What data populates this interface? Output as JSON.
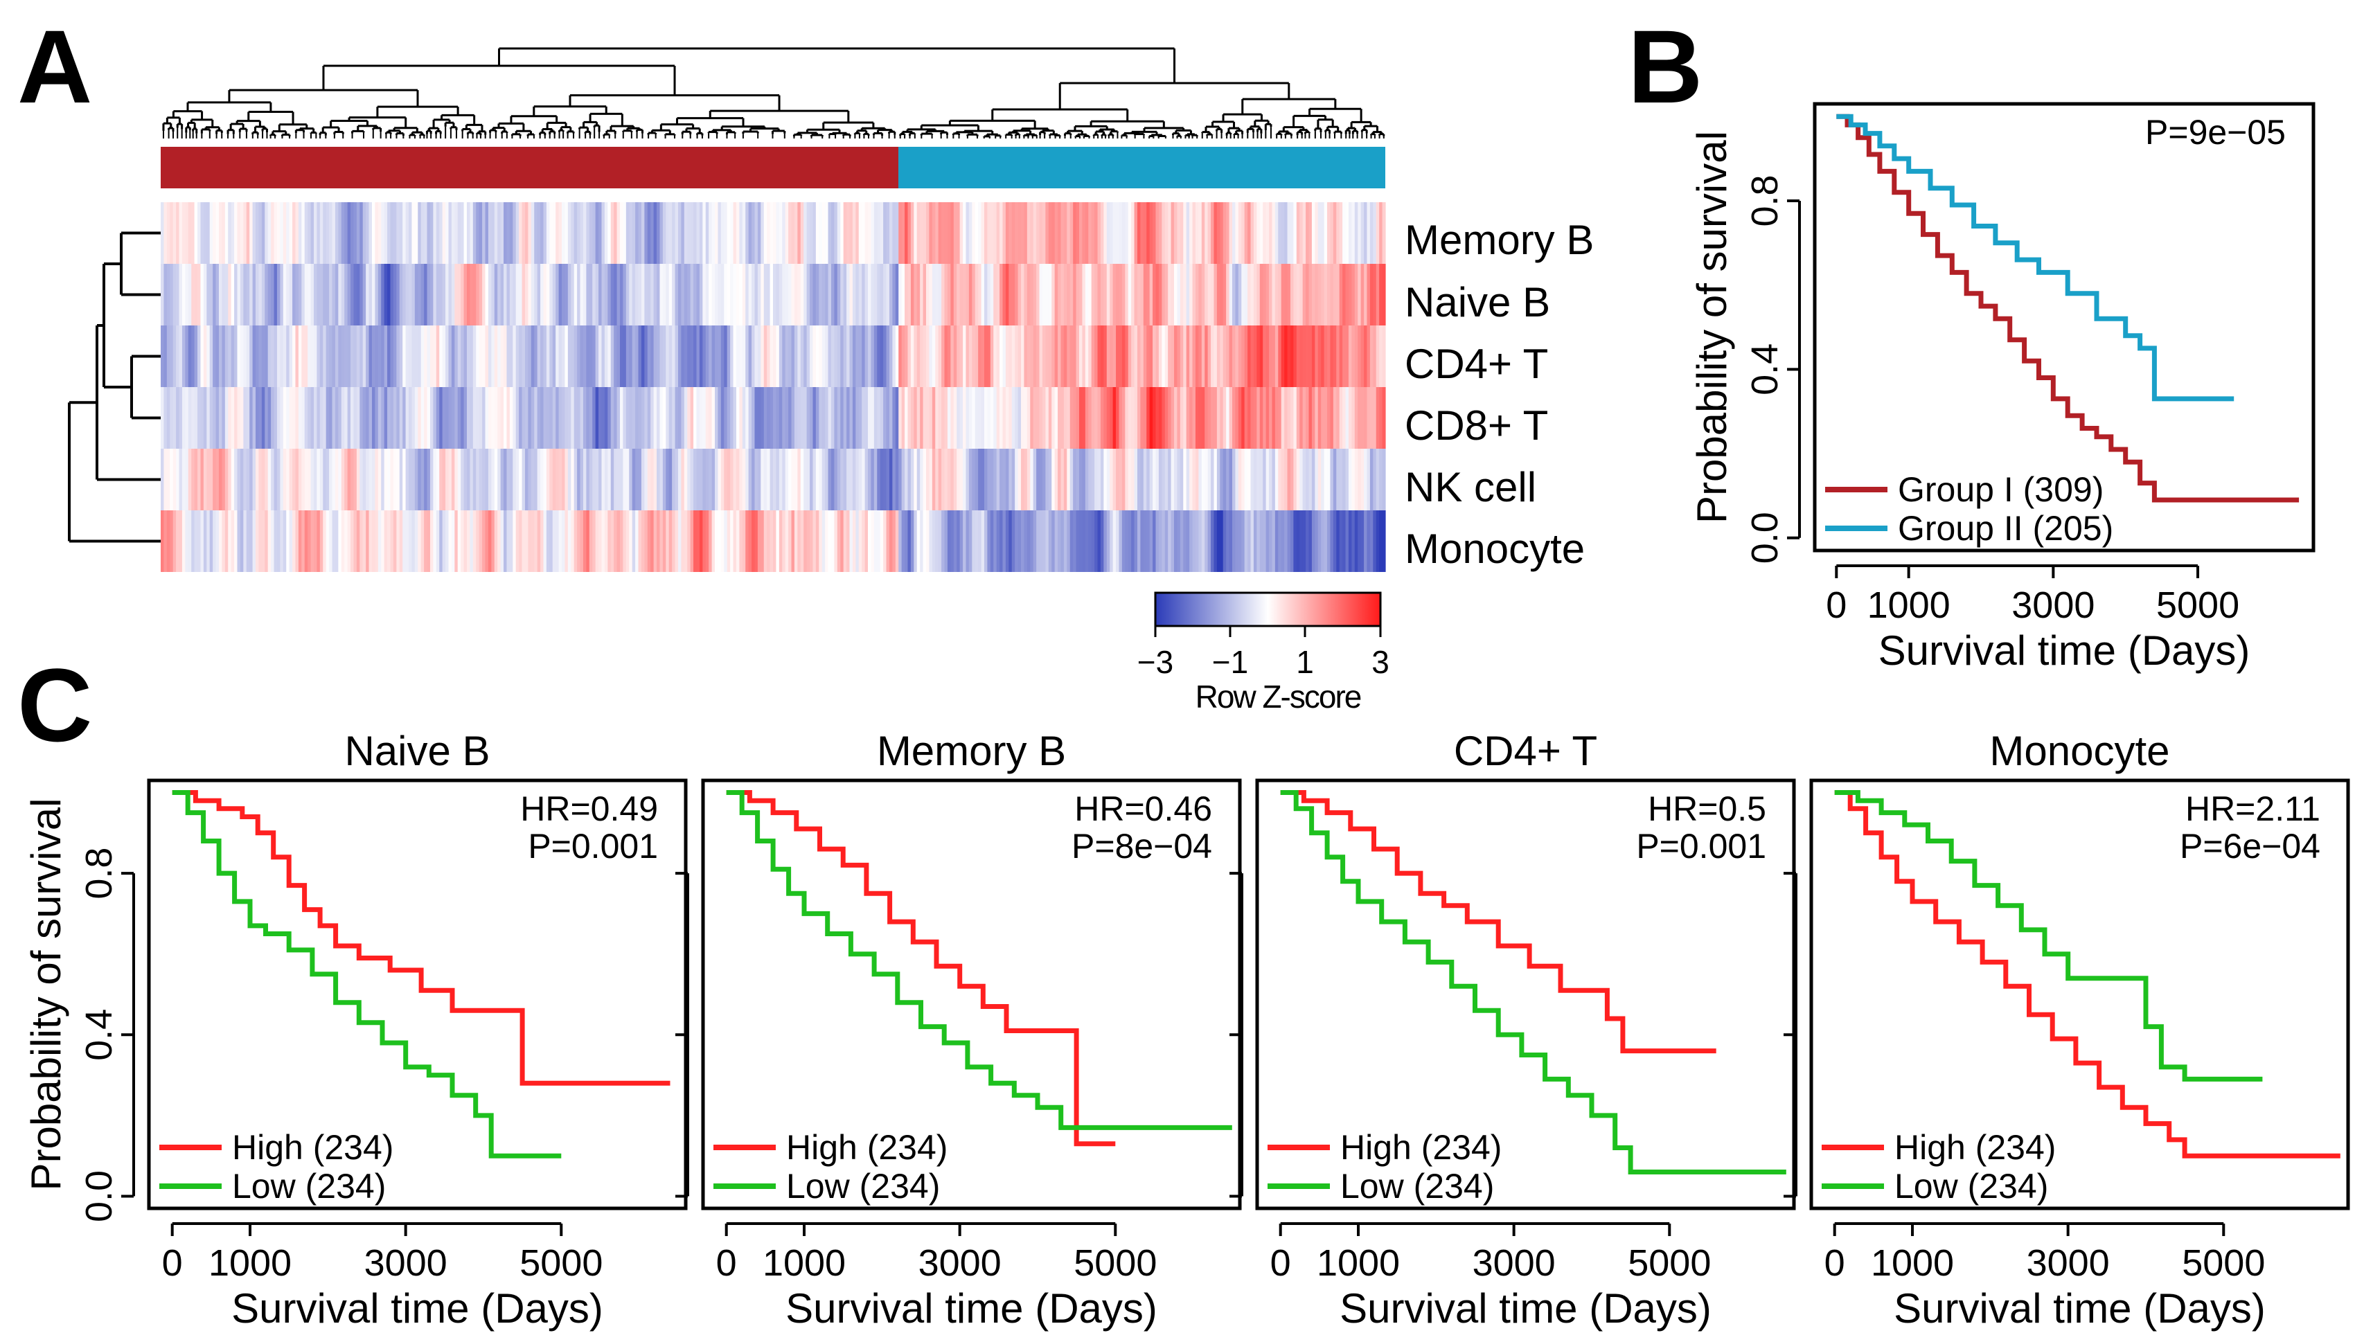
{
  "panels": {
    "A": {
      "letter": "A",
      "row_labels": [
        "Memory B",
        "Naive B",
        "CD4+ T",
        "CD8+ T",
        "NK cell",
        "Monocyte"
      ],
      "colorbar": {
        "title": "Row Z-score",
        "ticks": [
          "−3",
          "−1",
          "1",
          "3"
        ],
        "low_color": "#2b3bb8",
        "mid_color": "#ffffff",
        "high_color": "#ff1a1a"
      },
      "group_bar_colors": {
        "group_I": "#b22026",
        "group_II": "#1aa0c8"
      }
    },
    "B": {
      "letter": "B"
    },
    "C": {
      "letter": "C"
    }
  },
  "chart_data": [
    {
      "id": "B",
      "type": "line",
      "title": "",
      "xlabel": "Survival time (Days)",
      "ylabel": "Probability of survival",
      "xlim": [
        -300,
        6600
      ],
      "ylim": [
        -0.03,
        1.03
      ],
      "xticks": [
        0,
        1000,
        3000,
        5000
      ],
      "xtick_labels": [
        "0",
        "1000",
        "3000",
        "5000"
      ],
      "yticks": [
        0.0,
        0.4,
        0.8
      ],
      "ytick_labels": [
        "0.0",
        "0.4",
        "0.8"
      ],
      "annotations": [
        "P=9e−05"
      ],
      "legend_position": "bottom-left",
      "series": [
        {
          "name": "Group I (309)",
          "color": "#b22026",
          "x": [
            0,
            150,
            300,
            450,
            600,
            800,
            1000,
            1200,
            1400,
            1600,
            1800,
            2000,
            2200,
            2400,
            2600,
            2800,
            3000,
            3200,
            3400,
            3600,
            3800,
            4000,
            4200,
            4400,
            4600,
            5200,
            6400
          ],
          "y": [
            1.0,
            0.98,
            0.95,
            0.91,
            0.87,
            0.82,
            0.77,
            0.72,
            0.67,
            0.63,
            0.58,
            0.55,
            0.52,
            0.47,
            0.42,
            0.38,
            0.33,
            0.29,
            0.26,
            0.24,
            0.21,
            0.18,
            0.13,
            0.09,
            0.09,
            0.09,
            0.09
          ]
        },
        {
          "name": "Group II (205)",
          "color": "#1aa0c8",
          "x": [
            0,
            200,
            400,
            600,
            800,
            1000,
            1300,
            1600,
            1900,
            2200,
            2500,
            2800,
            3200,
            3600,
            4000,
            4200,
            4400,
            4900,
            5500
          ],
          "y": [
            1.0,
            0.98,
            0.96,
            0.93,
            0.9,
            0.87,
            0.83,
            0.79,
            0.74,
            0.7,
            0.66,
            0.63,
            0.58,
            0.52,
            0.48,
            0.45,
            0.33,
            0.33,
            0.33
          ]
        }
      ]
    },
    {
      "id": "C1",
      "type": "line",
      "title": "Naive B",
      "xlabel": "Survival time (Days)",
      "ylabel": "Probability of survival",
      "xlim": [
        -300,
        6600
      ],
      "ylim": [
        -0.03,
        1.03
      ],
      "xticks": [
        0,
        1000,
        3000,
        5000
      ],
      "xtick_labels": [
        "0",
        "1000",
        "3000",
        "5000"
      ],
      "yticks": [
        0.0,
        0.4,
        0.8
      ],
      "ytick_labels": [
        "0.0",
        "0.4",
        "0.8"
      ],
      "annotations": [
        "HR=0.49",
        "P=0.001"
      ],
      "legend_position": "bottom-left",
      "series": [
        {
          "name": "High (234)",
          "color": "#ff2020",
          "x": [
            0,
            300,
            600,
            900,
            1100,
            1300,
            1500,
            1700,
            1900,
            2100,
            2400,
            2800,
            3200,
            3600,
            4000,
            4400,
            4500,
            5000,
            6400
          ],
          "y": [
            1.0,
            0.98,
            0.96,
            0.94,
            0.9,
            0.84,
            0.77,
            0.71,
            0.67,
            0.62,
            0.59,
            0.56,
            0.51,
            0.46,
            0.46,
            0.46,
            0.28,
            0.28,
            0.28
          ]
        },
        {
          "name": "Low (234)",
          "color": "#1ec01e",
          "x": [
            0,
            200,
            400,
            600,
            800,
            1000,
            1200,
            1500,
            1800,
            2100,
            2400,
            2700,
            3000,
            3300,
            3600,
            3900,
            4100,
            4400,
            5000
          ],
          "y": [
            1.0,
            0.95,
            0.88,
            0.8,
            0.73,
            0.67,
            0.65,
            0.61,
            0.55,
            0.48,
            0.43,
            0.38,
            0.32,
            0.3,
            0.25,
            0.2,
            0.1,
            0.1,
            0.1
          ]
        }
      ]
    },
    {
      "id": "C2",
      "type": "line",
      "title": "Memory B",
      "xlabel": "Survival time (Days)",
      "ylabel": "",
      "xlim": [
        -300,
        6600
      ],
      "ylim": [
        -0.03,
        1.03
      ],
      "xticks": [
        0,
        1000,
        3000,
        5000
      ],
      "xtick_labels": [
        "0",
        "1000",
        "3000",
        "5000"
      ],
      "yticks": [
        0.0,
        0.4,
        0.8
      ],
      "ytick_labels": [],
      "annotations": [
        "HR=0.46",
        "P=8e−04"
      ],
      "legend_position": "bottom-left",
      "series": [
        {
          "name": "High (234)",
          "color": "#ff2020",
          "x": [
            0,
            300,
            600,
            900,
            1200,
            1500,
            1800,
            2100,
            2400,
            2700,
            3000,
            3300,
            3600,
            4000,
            4400,
            4500,
            5000
          ],
          "y": [
            1.0,
            0.98,
            0.95,
            0.91,
            0.86,
            0.82,
            0.75,
            0.68,
            0.63,
            0.57,
            0.52,
            0.47,
            0.41,
            0.41,
            0.41,
            0.13,
            0.13
          ]
        },
        {
          "name": "Low (234)",
          "color": "#1ec01e",
          "x": [
            0,
            200,
            400,
            600,
            800,
            1000,
            1300,
            1600,
            1900,
            2200,
            2500,
            2800,
            3100,
            3400,
            3700,
            4000,
            4300,
            6500
          ],
          "y": [
            1.0,
            0.95,
            0.88,
            0.81,
            0.75,
            0.7,
            0.65,
            0.6,
            0.55,
            0.48,
            0.42,
            0.38,
            0.32,
            0.28,
            0.25,
            0.22,
            0.17,
            0.17
          ]
        }
      ]
    },
    {
      "id": "C3",
      "type": "line",
      "title": "CD4+ T",
      "xlabel": "Survival time (Days)",
      "ylabel": "",
      "xlim": [
        -300,
        6600
      ],
      "ylim": [
        -0.03,
        1.03
      ],
      "xticks": [
        0,
        1000,
        3000,
        5000
      ],
      "xtick_labels": [
        "0",
        "1000",
        "3000",
        "5000"
      ],
      "yticks": [
        0.0,
        0.4,
        0.8
      ],
      "ytick_labels": [],
      "annotations": [
        "HR=0.5",
        "P=0.001"
      ],
      "legend_position": "bottom-left",
      "series": [
        {
          "name": "High (234)",
          "color": "#ff2020",
          "x": [
            0,
            300,
            600,
            900,
            1200,
            1500,
            1800,
            2100,
            2400,
            2800,
            3200,
            3600,
            4000,
            4200,
            4400,
            5600
          ],
          "y": [
            1.0,
            0.98,
            0.95,
            0.91,
            0.86,
            0.8,
            0.75,
            0.72,
            0.68,
            0.62,
            0.57,
            0.51,
            0.51,
            0.44,
            0.36,
            0.36
          ]
        },
        {
          "name": "Low (234)",
          "color": "#1ec01e",
          "x": [
            0,
            200,
            400,
            600,
            800,
            1000,
            1300,
            1600,
            1900,
            2200,
            2500,
            2800,
            3100,
            3400,
            3700,
            4000,
            4300,
            4500,
            6500
          ],
          "y": [
            1.0,
            0.96,
            0.9,
            0.84,
            0.78,
            0.73,
            0.68,
            0.63,
            0.58,
            0.52,
            0.46,
            0.4,
            0.35,
            0.29,
            0.25,
            0.2,
            0.12,
            0.06,
            0.06
          ]
        }
      ]
    },
    {
      "id": "C4",
      "type": "line",
      "title": "Monocyte",
      "xlabel": "Survival time (Days)",
      "ylabel": "",
      "xlim": [
        -300,
        6600
      ],
      "ylim": [
        -0.03,
        1.03
      ],
      "xticks": [
        0,
        1000,
        3000,
        5000
      ],
      "xtick_labels": [
        "0",
        "1000",
        "3000",
        "5000"
      ],
      "yticks": [
        0.0,
        0.4,
        0.8
      ],
      "ytick_labels": [],
      "annotations": [
        "HR=2.11",
        "P=6e−04"
      ],
      "legend_position": "bottom-left",
      "series": [
        {
          "name": "High (234)",
          "color": "#ff2020",
          "x": [
            0,
            200,
            400,
            600,
            800,
            1000,
            1300,
            1600,
            1900,
            2200,
            2500,
            2800,
            3100,
            3400,
            3700,
            4000,
            4300,
            4500,
            6500
          ],
          "y": [
            1.0,
            0.96,
            0.9,
            0.84,
            0.78,
            0.73,
            0.68,
            0.63,
            0.58,
            0.52,
            0.45,
            0.39,
            0.33,
            0.27,
            0.22,
            0.18,
            0.14,
            0.1,
            0.1
          ]
        },
        {
          "name": "Low (234)",
          "color": "#1ec01e",
          "x": [
            0,
            300,
            600,
            900,
            1200,
            1500,
            1800,
            2100,
            2400,
            2700,
            3000,
            3400,
            3800,
            4000,
            4200,
            4500,
            5500
          ],
          "y": [
            1.0,
            0.98,
            0.95,
            0.92,
            0.88,
            0.83,
            0.77,
            0.72,
            0.66,
            0.6,
            0.54,
            0.54,
            0.54,
            0.42,
            0.32,
            0.29,
            0.29
          ]
        }
      ]
    }
  ]
}
